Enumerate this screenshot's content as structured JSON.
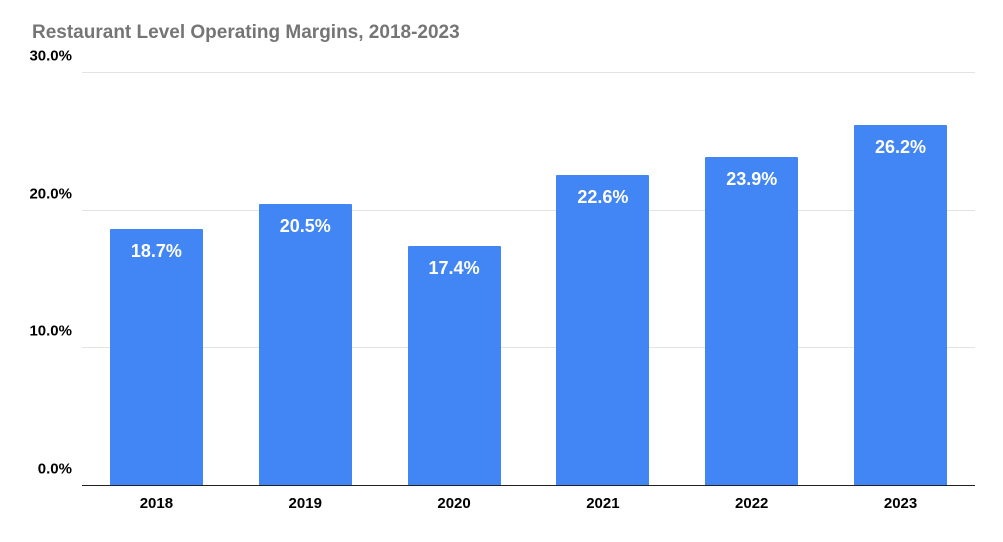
{
  "chart_data": {
    "type": "bar",
    "title": "Restaurant Level Operating Margins, 2018-2023",
    "categories": [
      "2018",
      "2019",
      "2020",
      "2021",
      "2022",
      "2023"
    ],
    "values": [
      18.7,
      20.5,
      17.4,
      22.6,
      23.9,
      26.2
    ],
    "value_labels": [
      "18.7%",
      "20.5%",
      "17.4%",
      "22.6%",
      "23.9%",
      "26.2%"
    ],
    "xlabel": "",
    "ylabel": "",
    "ylim": [
      0,
      30
    ],
    "yticks": [
      0,
      10,
      20,
      30
    ],
    "ytick_labels": [
      "0.0%",
      "10.0%",
      "20.0%",
      "30.0%"
    ],
    "grid": true,
    "legend_position": "none",
    "colors": {
      "bar": "#4285f4",
      "bar_value_label": "#ffffff",
      "title": "#757575",
      "axis_text": "#000000",
      "gridline": "#e3e3e3",
      "baseline": "#212121",
      "background": "#ffffff"
    }
  }
}
